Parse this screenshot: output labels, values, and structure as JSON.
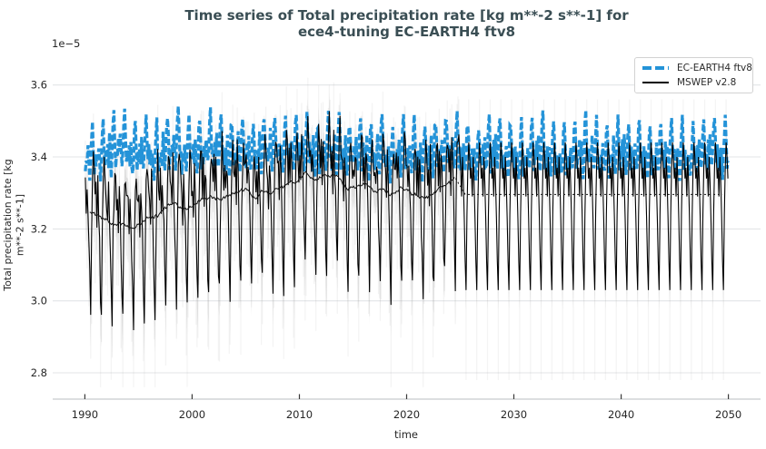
{
  "chart_data": {
    "type": "line",
    "title_lines": [
      "Time series of Total precipitation rate [kg m**-2 s**-1] for",
      "ece4-tuning EC-EARTH4 ftv8"
    ],
    "title_color": "#3a4e54",
    "xlabel": "time",
    "ylabel_lines": [
      "Total precipitation rate [kg",
      "m**-2 s**-1]"
    ],
    "offset_text": "1e−5",
    "xlim": [
      1987,
      2053
    ],
    "ylim": [
      2.727,
      3.7
    ],
    "xticks": [
      1990,
      2000,
      2010,
      2020,
      2030,
      2040,
      2050
    ],
    "yticks": [
      2.8,
      3.0,
      3.2,
      3.4,
      3.6
    ],
    "ytick_labels": [
      "2.8",
      "3.0",
      "3.2",
      "3.4",
      "3.6"
    ],
    "grid": true,
    "grid_color": "#e3e5e7",
    "spine_color": "#c8cbcd",
    "tick_color": "#3a3a3a",
    "label_color": "#262626",
    "legend": {
      "position": "upper right"
    },
    "series": [
      {
        "name": "EC-EARTH4 ftv8",
        "color": "#2493d8",
        "linewidth": 3.3,
        "dash": [
          7,
          3
        ],
        "year_start": 1990,
        "year_end": 2049,
        "monthly_climatology": [
          3.36,
          3.41,
          3.37,
          3.43,
          3.38,
          3.34,
          3.39,
          3.46,
          3.49,
          3.42,
          3.36,
          3.4
        ],
        "annual_anomalies": [
          0.0,
          0.01,
          0.02,
          0.03,
          0.01,
          0.02,
          0.0,
          0.02,
          0.03,
          0.01,
          0.02,
          0.03,
          0.02,
          0.01,
          0.02,
          0.01,
          0.02,
          0.03,
          0.02,
          0.03,
          0.02,
          0.01,
          0.03,
          0.02,
          0.01,
          0.02,
          0.01,
          0.02,
          0.0,
          0.01,
          0.02,
          0.01,
          0.02,
          0.03,
          0.02,
          0.01,
          0.0,
          0.01,
          0.02,
          0.01,
          0.0,
          0.01,
          0.02,
          0.01,
          0.0,
          0.01,
          0.02,
          0.01,
          0.0,
          0.01,
          0.02,
          0.01,
          0.0,
          0.01,
          0.02,
          0.01,
          0.0,
          0.01,
          0.02,
          0.01
        ],
        "noise_amplitude": 0.022
      },
      {
        "name": "MSWEP v2.8",
        "color": "#000000",
        "linewidth": 1.1,
        "dash": null,
        "year_start": 1990,
        "year_end": 2049,
        "obs_end_year": 2024,
        "monthly_climatology": [
          3.37,
          3.29,
          3.4,
          3.33,
          3.23,
          3.11,
          3.03,
          3.24,
          3.37,
          3.44,
          3.4,
          3.34
        ],
        "annual_anomalies": [
          -0.06,
          -0.07,
          -0.08,
          -0.07,
          -0.08,
          -0.07,
          -0.06,
          -0.04,
          -0.03,
          -0.04,
          -0.02,
          -0.01,
          0.0,
          -0.01,
          0.01,
          0.0,
          0.01,
          0.0,
          0.02,
          0.03,
          0.05,
          0.04,
          0.06,
          0.05,
          0.03,
          0.02,
          0.02,
          0.01,
          0.0,
          0.01,
          -0.01,
          -0.01,
          0.0,
          0.03,
          0.04
        ],
        "noise_amplitude": 0.045,
        "band": {
          "color": "#9a9a9a",
          "band_upper": 0.05,
          "band_lower": 0.09,
          "band_opacity": 0.2,
          "clim_band_upper": 0.045,
          "clim_band_lower": 0.055,
          "hair_upper": 0.12,
          "hair_lower": 0.26,
          "hair_opacity": 0.11,
          "clim_hair_upper": 0.12,
          "clim_hair_lower": 0.25,
          "hair_cap_top": 3.62,
          "hair_cap_bottom": 2.76
        },
        "rolling_mean": {
          "window_months": 12,
          "color": "#111111",
          "linewidth": 1,
          "dotted_after_year": 2024.5
        }
      }
    ]
  }
}
